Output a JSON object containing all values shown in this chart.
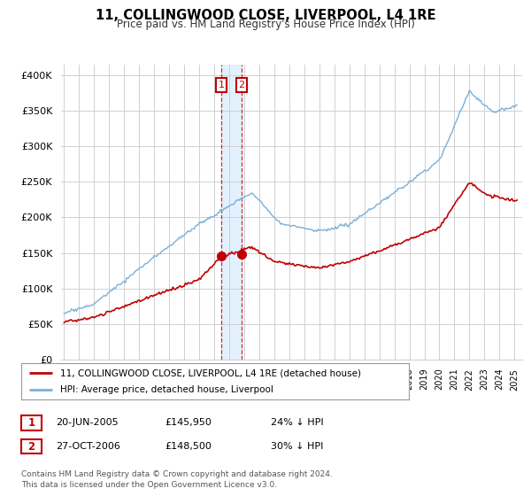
{
  "title": "11, COLLINGWOOD CLOSE, LIVERPOOL, L4 1RE",
  "subtitle": "Price paid vs. HM Land Registry's House Price Index (HPI)",
  "ylabel_ticks": [
    "£0",
    "£50K",
    "£100K",
    "£150K",
    "£200K",
    "£250K",
    "£300K",
    "£350K",
    "£400K"
  ],
  "ytick_values": [
    0,
    50000,
    100000,
    150000,
    200000,
    250000,
    300000,
    350000,
    400000
  ],
  "ylim": [
    0,
    415000
  ],
  "xlim_start": 1994.8,
  "xlim_end": 2025.5,
  "hpi_color": "#7ab0d8",
  "price_color": "#c00000",
  "sale1_date": 2005.47,
  "sale1_price": 145950,
  "sale2_date": 2006.82,
  "sale2_price": 148500,
  "legend_label1": "11, COLLINGWOOD CLOSE, LIVERPOOL, L4 1RE (detached house)",
  "legend_label2": "HPI: Average price, detached house, Liverpool",
  "table_row1": [
    "1",
    "20-JUN-2005",
    "£145,950",
    "24% ↓ HPI"
  ],
  "table_row2": [
    "2",
    "27-OCT-2006",
    "£148,500",
    "30% ↓ HPI"
  ],
  "footnote": "Contains HM Land Registry data © Crown copyright and database right 2024.\nThis data is licensed under the Open Government Licence v3.0.",
  "background_color": "#ffffff",
  "grid_color": "#d0d0d0",
  "shade_color": "#ddeeff"
}
